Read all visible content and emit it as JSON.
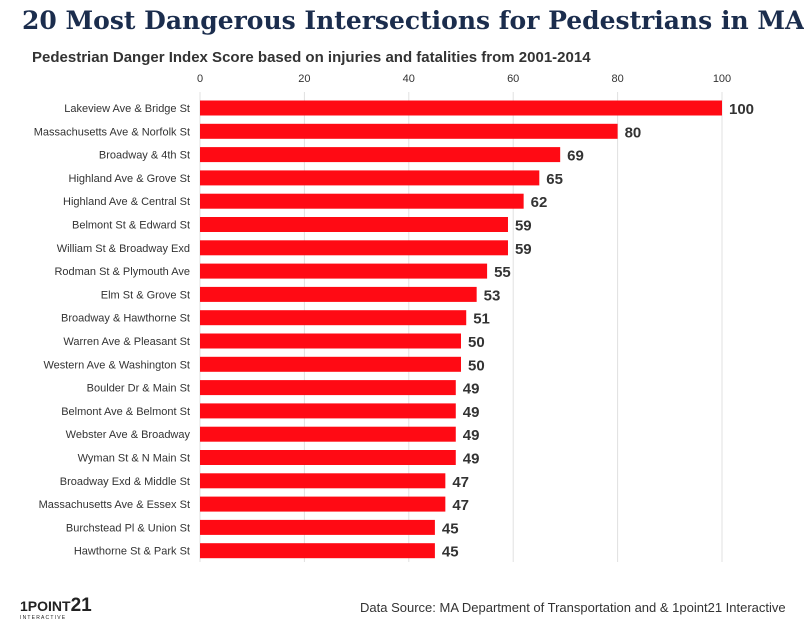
{
  "header": {
    "title": "20 Most Dangerous Intersections for Pedestrians in MA",
    "subtitle": "Pedestrian Danger Index Score based on injuries and fatalities from 2001-2014"
  },
  "footer": {
    "source": "Data Source: MA Department of Transportation and & 1point21 Interactive"
  },
  "logo": {
    "main_prefix": "1POINT",
    "main_suffix": "21",
    "sub": "INTERACTIVE"
  },
  "colors": {
    "bar": "#ff0a14",
    "title": "#1b2d4d",
    "grid": "#e0e0e0",
    "text": "#333333"
  },
  "chart_data": {
    "type": "bar",
    "orientation": "horizontal",
    "categories": [
      "Lakeview Ave & Bridge St",
      "Massachusetts Ave & Norfolk St",
      "Broadway & 4th St",
      "Highland Ave & Grove St",
      "Highland Ave & Central St",
      "Belmont St & Edward St",
      "William St & Broadway Exd",
      "Rodman St & Plymouth Ave",
      "Elm St & Grove St",
      "Broadway & Hawthorne St",
      "Warren Ave & Pleasant St",
      "Western Ave & Washington St",
      "Boulder Dr & Main St",
      "Belmont Ave & Belmont St",
      "Webster Ave & Broadway",
      "Wyman St & N Main St",
      "Broadway Exd & Middle St",
      "Massachusetts Ave & Essex St",
      "Burchstead Pl & Union St",
      "Hawthorne St & Park St"
    ],
    "values": [
      100,
      80,
      69,
      65,
      62,
      59,
      59,
      55,
      53,
      51,
      50,
      50,
      49,
      49,
      49,
      49,
      47,
      47,
      45,
      45
    ],
    "xlim": [
      0,
      100
    ],
    "xticks": [
      0,
      20,
      40,
      60,
      80,
      100
    ],
    "xaxis_position": "top",
    "grid": true,
    "data_labels": true,
    "legend": "none"
  }
}
